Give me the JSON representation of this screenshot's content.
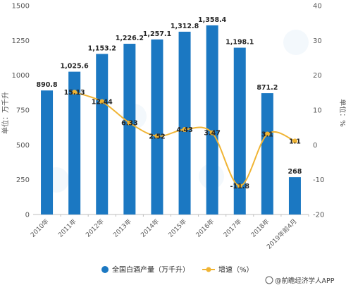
{
  "chart_data": {
    "type": "bar",
    "categories": [
      "2010年",
      "2011年",
      "2012年",
      "2013年",
      "2014年",
      "2015年",
      "2016年",
      "2017年",
      "2018年",
      "2019年前4月"
    ],
    "series": [
      {
        "name": "全国白酒产量（万千升）",
        "type": "bar",
        "axis": "left",
        "color": "#1b78c2",
        "values": [
          890.8,
          1025.6,
          1153.2,
          1226.2,
          1257.1,
          1312.8,
          1358.4,
          1198.1,
          871.2,
          268
        ],
        "labels": [
          "890.8",
          "1,025.6",
          "1,153.2",
          "1,226.2",
          "1,257.1",
          "1,312.8",
          "1,358.4",
          "1,198.1",
          "871.2",
          "268"
        ]
      },
      {
        "name": "增速（%）",
        "type": "line",
        "axis": "right",
        "color": "#f0b433",
        "values": [
          null,
          15.13,
          12.44,
          6.33,
          2.52,
          4.43,
          3.47,
          -11.8,
          3.1,
          1.1
        ],
        "labels": [
          "",
          "15.13",
          "12.44",
          "6.33",
          "2.52",
          "4.43",
          "3.47",
          "-11.8",
          "3.1",
          "1.1"
        ]
      }
    ],
    "ylabel_left": "单位：万千升",
    "ylabel_right": "单位：%",
    "ylim_left": [
      0,
      1500
    ],
    "yticks_left": [
      0,
      250,
      500,
      750,
      1000,
      1250,
      1500
    ],
    "ylim_right": [
      -20,
      40
    ],
    "yticks_right": [
      -20,
      -10,
      0,
      10,
      20,
      30,
      40
    ],
    "grid": false,
    "legend_position": "bottom",
    "source": "@前瞻经济学人APP"
  }
}
